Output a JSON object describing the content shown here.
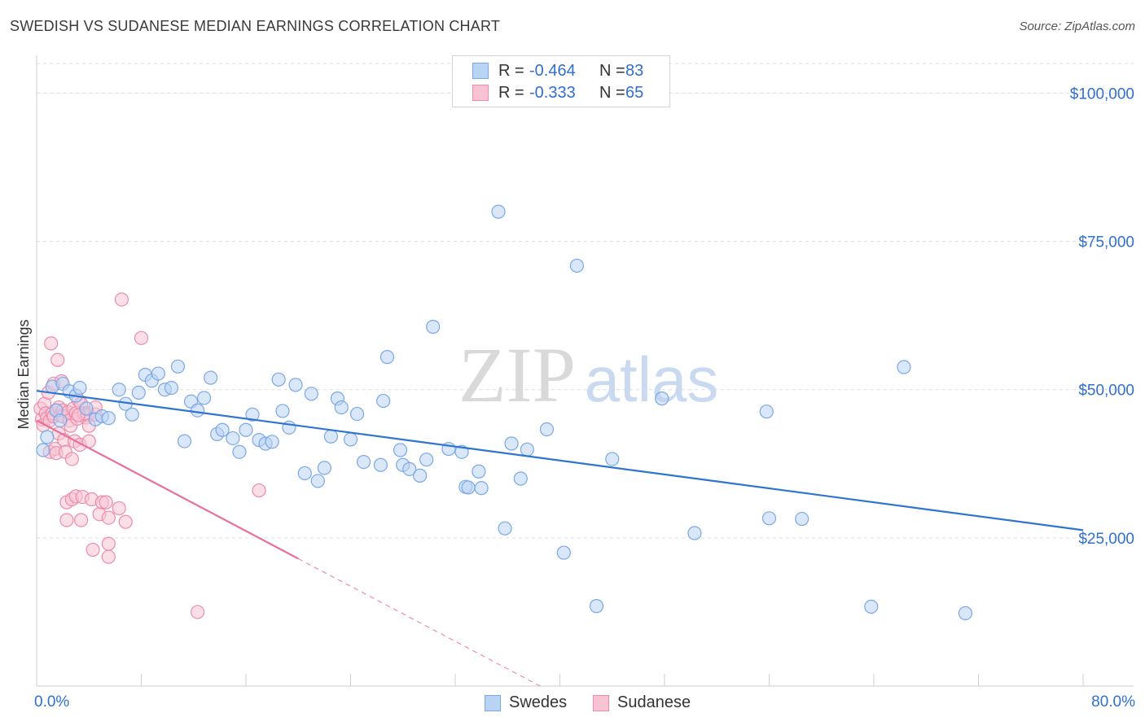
{
  "title": "SWEDISH VS SUDANESE MEDIAN EARNINGS CORRELATION CHART",
  "source": "Source: ZipAtlas.com",
  "watermark": {
    "zip": "ZIP",
    "atlas": "atlas"
  },
  "colors": {
    "swedes": "#7aa8e6",
    "swedes_fill": "#b9d3f4",
    "swedes_line": "#2f74d0",
    "sudanese": "#ee8aaa",
    "sudanese_fill": "#f8c4d4",
    "sudanese_line": "#e8709a",
    "axis_label": "#2f6fd0",
    "grid": "#dcdcdc"
  },
  "legend": {
    "rows": [
      {
        "r_label": "R =",
        "r_value": "-0.464",
        "n_label": "N =",
        "n_value": "83"
      },
      {
        "r_label": "R =",
        "r_value": "-0.333",
        "n_label": "N =",
        "n_value": "65"
      }
    ]
  },
  "bottom_legend": {
    "swedes": "Swedes",
    "sudanese": "Sudanese"
  },
  "x_axis": {
    "min_label": "0.0%",
    "max_label": "80.0%"
  },
  "chart_data": {
    "type": "scatter",
    "title": "SWEDISH VS SUDANESE MEDIAN EARNINGS CORRELATION CHART",
    "xlabel": "",
    "ylabel": "Median Earnings",
    "xlim": [
      0,
      80
    ],
    "ylim": [
      0,
      105000
    ],
    "y_ticks": [
      25000,
      50000,
      75000,
      100000
    ],
    "y_tick_labels": [
      "$25,000",
      "$50,000",
      "$75,000",
      "$100,000"
    ],
    "x_tick_labels": [
      "0.0%",
      "80.0%"
    ],
    "series": [
      {
        "name": "Swedes",
        "r": -0.464,
        "n": 83,
        "trend": {
          "x": [
            0,
            80
          ],
          "y": [
            49800,
            26300
          ]
        },
        "points": [
          [
            0.5,
            39800
          ],
          [
            0.8,
            42000
          ],
          [
            1.2,
            50500
          ],
          [
            1.5,
            46500
          ],
          [
            1.8,
            44800
          ],
          [
            2.0,
            51000
          ],
          [
            2.5,
            49700
          ],
          [
            3.0,
            49000
          ],
          [
            3.3,
            50300
          ],
          [
            3.8,
            46800
          ],
          [
            4.5,
            45000
          ],
          [
            5.0,
            45500
          ],
          [
            5.5,
            45200
          ],
          [
            6.3,
            50000
          ],
          [
            6.8,
            47600
          ],
          [
            7.3,
            45800
          ],
          [
            7.8,
            49500
          ],
          [
            8.3,
            52500
          ],
          [
            8.8,
            51500
          ],
          [
            9.3,
            52700
          ],
          [
            9.8,
            50000
          ],
          [
            10.3,
            50300
          ],
          [
            10.8,
            53900
          ],
          [
            11.3,
            41300
          ],
          [
            11.8,
            48000
          ],
          [
            12.3,
            46500
          ],
          [
            12.8,
            48600
          ],
          [
            13.3,
            52000
          ],
          [
            13.8,
            42500
          ],
          [
            14.2,
            43200
          ],
          [
            15.0,
            41800
          ],
          [
            15.5,
            39500
          ],
          [
            16.0,
            43200
          ],
          [
            16.5,
            45800
          ],
          [
            17.0,
            41500
          ],
          [
            17.5,
            40900
          ],
          [
            18.0,
            41200
          ],
          [
            18.5,
            51700
          ],
          [
            18.8,
            46400
          ],
          [
            19.3,
            43600
          ],
          [
            19.8,
            50800
          ],
          [
            20.5,
            35900
          ],
          [
            21.0,
            49300
          ],
          [
            21.5,
            34600
          ],
          [
            22.0,
            36800
          ],
          [
            22.5,
            42100
          ],
          [
            23.0,
            48500
          ],
          [
            23.3,
            47000
          ],
          [
            24.0,
            41600
          ],
          [
            24.5,
            45900
          ],
          [
            25.0,
            37800
          ],
          [
            26.3,
            37300
          ],
          [
            26.5,
            48100
          ],
          [
            26.8,
            55500
          ],
          [
            27.8,
            39800
          ],
          [
            28.0,
            37300
          ],
          [
            28.5,
            36600
          ],
          [
            29.3,
            35500
          ],
          [
            29.8,
            38200
          ],
          [
            30.3,
            60600
          ],
          [
            31.5,
            40000
          ],
          [
            32.5,
            39500
          ],
          [
            32.8,
            33600
          ],
          [
            33.0,
            33500
          ],
          [
            33.8,
            36200
          ],
          [
            34.0,
            33400
          ],
          [
            35.3,
            80000
          ],
          [
            35.8,
            26600
          ],
          [
            36.3,
            40900
          ],
          [
            37.0,
            35000
          ],
          [
            37.5,
            39900
          ],
          [
            39.0,
            43300
          ],
          [
            40.3,
            22500
          ],
          [
            41.3,
            70900
          ],
          [
            42.8,
            13500
          ],
          [
            44.0,
            38300
          ],
          [
            47.8,
            48500
          ],
          [
            50.3,
            25800
          ],
          [
            55.8,
            46300
          ],
          [
            56.0,
            28300
          ],
          [
            58.5,
            28200
          ],
          [
            63.8,
            13400
          ],
          [
            66.3,
            53800
          ],
          [
            71.0,
            12300
          ]
        ]
      },
      {
        "name": "Sudanese",
        "r": -0.333,
        "n": 65,
        "trend": {
          "x": [
            0,
            20.0
          ],
          "y": [
            44800,
            21500
          ]
        },
        "trend_dashed": {
          "x": [
            20.0,
            38.5
          ],
          "y": [
            21500,
            0
          ]
        },
        "points": [
          [
            0.3,
            46800
          ],
          [
            0.4,
            45000
          ],
          [
            0.5,
            44000
          ],
          [
            0.6,
            47600
          ],
          [
            0.7,
            46000
          ],
          [
            0.8,
            45200
          ],
          [
            0.9,
            49500
          ],
          [
            1.0,
            39500
          ],
          [
            1.0,
            44800
          ],
          [
            1.1,
            57800
          ],
          [
            1.2,
            46000
          ],
          [
            1.3,
            51000
          ],
          [
            1.3,
            45500
          ],
          [
            1.4,
            40000
          ],
          [
            1.5,
            46500
          ],
          [
            1.5,
            39300
          ],
          [
            1.6,
            55000
          ],
          [
            1.7,
            47000
          ],
          [
            1.7,
            42600
          ],
          [
            1.8,
            45600
          ],
          [
            1.9,
            51400
          ],
          [
            2.0,
            46500
          ],
          [
            2.0,
            45500
          ],
          [
            2.1,
            41500
          ],
          [
            2.2,
            39500
          ],
          [
            2.3,
            28000
          ],
          [
            2.3,
            31000
          ],
          [
            2.4,
            46200
          ],
          [
            2.5,
            44800
          ],
          [
            2.6,
            43900
          ],
          [
            2.7,
            38300
          ],
          [
            2.7,
            31500
          ],
          [
            2.8,
            46800
          ],
          [
            2.9,
            41300
          ],
          [
            3.0,
            32000
          ],
          [
            3.0,
            46000
          ],
          [
            3.1,
            45100
          ],
          [
            3.2,
            48200
          ],
          [
            3.3,
            40700
          ],
          [
            3.4,
            28000
          ],
          [
            3.4,
            47600
          ],
          [
            3.5,
            31900
          ],
          [
            3.6,
            46000
          ],
          [
            3.8,
            45300
          ],
          [
            3.9,
            46000
          ],
          [
            3.9,
            45700
          ],
          [
            4.0,
            41300
          ],
          [
            4.0,
            43900
          ],
          [
            4.2,
            31500
          ],
          [
            4.3,
            23000
          ],
          [
            4.5,
            45800
          ],
          [
            4.5,
            47000
          ],
          [
            4.8,
            29000
          ],
          [
            5.0,
            31000
          ],
          [
            5.3,
            31000
          ],
          [
            5.5,
            28400
          ],
          [
            5.5,
            24000
          ],
          [
            5.5,
            21800
          ],
          [
            6.3,
            30000
          ],
          [
            6.5,
            65200
          ],
          [
            6.8,
            27700
          ],
          [
            8.0,
            58700
          ],
          [
            12.3,
            12500
          ],
          [
            17.0,
            33000
          ],
          [
            3.2,
            45700
          ]
        ]
      }
    ]
  }
}
